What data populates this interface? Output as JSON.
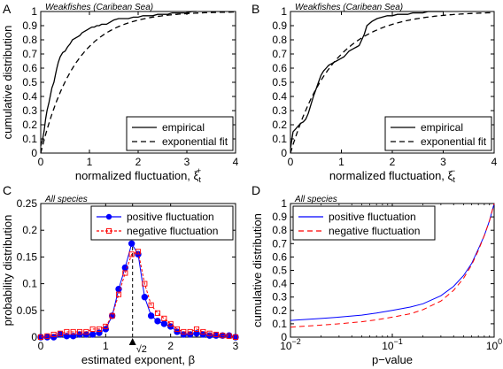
{
  "figure": {
    "panel_letters": [
      "A",
      "B",
      "C",
      "D"
    ]
  },
  "chart_data": [
    {
      "panel": "A",
      "type": "line",
      "title": "Weakfishes (Caribean Sea)",
      "xlabel": "normalized fluctuation, ξ",
      "xlabel_sub": "t",
      "xlabel_sup": "+",
      "ylabel": "cumulative distribution",
      "xlim": [
        0,
        4
      ],
      "ylim": [
        0,
        1
      ],
      "xscale": "linear",
      "xticks": [
        0,
        1,
        2,
        3,
        4
      ],
      "xticklabels": [
        "0",
        "1",
        "2",
        "3",
        "4"
      ],
      "yticks": [
        0,
        0.1,
        0.2,
        0.3,
        0.4,
        0.5,
        0.6,
        0.7,
        0.8,
        0.9,
        1
      ],
      "yticklabels": [
        "0",
        "0.1",
        "0.2",
        "0.3",
        "0.4",
        "0.5",
        "0.6",
        "0.7",
        "0.8",
        "0.9",
        "1"
      ],
      "legend_position": "bottom-right",
      "series": [
        {
          "name": "empirical",
          "style": "solid",
          "color": "#000000",
          "x": [
            0,
            0.04,
            0.07,
            0.1,
            0.13,
            0.17,
            0.2,
            0.23,
            0.27,
            0.3,
            0.33,
            0.36,
            0.4,
            0.45,
            0.5,
            0.55,
            0.6,
            0.65,
            0.7,
            0.75,
            0.8,
            0.85,
            0.9,
            0.95,
            1.0,
            1.05,
            1.1,
            1.15,
            1.2,
            1.25,
            1.3,
            1.35,
            1.4,
            1.45,
            1.5,
            1.6,
            1.7,
            1.8,
            1.9,
            2.0,
            2.1,
            2.2,
            2.3,
            2.4,
            2.5,
            2.6,
            2.7,
            2.8,
            2.9,
            3.0,
            3.1,
            3.2
          ],
          "y": [
            0.05,
            0.1,
            0.16,
            0.24,
            0.3,
            0.36,
            0.41,
            0.46,
            0.5,
            0.55,
            0.6,
            0.64,
            0.68,
            0.71,
            0.72,
            0.75,
            0.77,
            0.8,
            0.81,
            0.82,
            0.83,
            0.85,
            0.86,
            0.87,
            0.88,
            0.89,
            0.89,
            0.9,
            0.9,
            0.91,
            0.91,
            0.91,
            0.92,
            0.93,
            0.94,
            0.95,
            0.95,
            0.95,
            0.96,
            0.96,
            0.97,
            0.97,
            0.97,
            0.98,
            0.98,
            0.98,
            0.99,
            0.99,
            0.99,
            0.99,
            1.0,
            1.0
          ]
        },
        {
          "name": "exponential fit",
          "style": "dashed",
          "color": "#000000",
          "fn": "exp",
          "rate": 1.4
        }
      ]
    },
    {
      "panel": "B",
      "type": "line",
      "title": "Weakfishes (Caribean Sea)",
      "xlabel": "normalized fluctuation, ξ",
      "xlabel_sub": "t",
      "xlabel_sup": "−",
      "ylabel": "",
      "xlim": [
        0,
        4
      ],
      "ylim": [
        0,
        1
      ],
      "xscale": "linear",
      "xticks": [
        0,
        1,
        2,
        3,
        4
      ],
      "xticklabels": [
        "0",
        "1",
        "2",
        "3",
        "4"
      ],
      "yticks": [
        0,
        0.1,
        0.2,
        0.3,
        0.4,
        0.5,
        0.6,
        0.7,
        0.8,
        0.9,
        1
      ],
      "yticklabels": [
        "0",
        "0.1",
        "0.2",
        "0.3",
        "0.4",
        "0.5",
        "0.6",
        "0.7",
        "0.8",
        "0.9",
        "1"
      ],
      "legend_position": "bottom-right",
      "series": [
        {
          "name": "empirical",
          "style": "solid",
          "color": "#000000",
          "x": [
            0,
            0.05,
            0.1,
            0.15,
            0.2,
            0.25,
            0.3,
            0.35,
            0.4,
            0.45,
            0.5,
            0.55,
            0.6,
            0.65,
            0.7,
            0.75,
            0.8,
            0.85,
            0.9,
            0.95,
            1.0,
            1.05,
            1.1,
            1.15,
            1.2,
            1.25,
            1.3,
            1.35,
            1.4,
            1.45,
            1.5,
            1.6,
            1.7,
            1.8,
            1.9,
            2.0,
            2.1,
            2.2,
            2.3,
            2.4,
            2.5,
            2.6,
            2.7,
            2.8,
            2.9,
            3.0
          ],
          "y": [
            0.03,
            0.15,
            0.17,
            0.19,
            0.21,
            0.22,
            0.24,
            0.28,
            0.34,
            0.4,
            0.45,
            0.5,
            0.55,
            0.58,
            0.6,
            0.62,
            0.63,
            0.64,
            0.65,
            0.66,
            0.67,
            0.68,
            0.7,
            0.72,
            0.73,
            0.74,
            0.75,
            0.76,
            0.8,
            0.84,
            0.9,
            0.93,
            0.95,
            0.96,
            0.97,
            0.97,
            0.98,
            0.98,
            0.98,
            0.99,
            0.99,
            0.99,
            1.0,
            1.0,
            1.0,
            1.0
          ]
        },
        {
          "name": "exponential fit",
          "style": "dashed",
          "color": "#000000",
          "fn": "exp",
          "rate": 1.2
        }
      ]
    },
    {
      "panel": "C",
      "type": "line",
      "title": "All species",
      "xlabel": "estimated exponent, β",
      "ylabel": "probability distribution",
      "xlim": [
        0,
        3
      ],
      "ylim": [
        0,
        0.25
      ],
      "xscale": "linear",
      "xticks": [
        0,
        1,
        2,
        3
      ],
      "xticklabels": [
        "0",
        "1",
        "2",
        "3"
      ],
      "yticks": [
        0,
        0.05,
        0.1,
        0.15,
        0.2,
        0.25
      ],
      "yticklabels": [
        "0",
        "0.05",
        "0.1",
        "0.15",
        "0.2",
        "0.25"
      ],
      "legend_position": "top-right",
      "annotation": {
        "text": "√2",
        "x": 1.414
      },
      "series": [
        {
          "name": "positive fluctuation",
          "style": "solid",
          "marker": "circle",
          "color": "#0000ff",
          "x": [
            0.0,
            0.1,
            0.2,
            0.3,
            0.4,
            0.5,
            0.6,
            0.7,
            0.8,
            0.9,
            1.0,
            1.1,
            1.2,
            1.3,
            1.4,
            1.5,
            1.6,
            1.7,
            1.8,
            1.9,
            2.0,
            2.1,
            2.2,
            2.3,
            2.4,
            2.5,
            2.6,
            2.7,
            2.8,
            2.9,
            3.0
          ],
          "y": [
            0.0,
            0.0,
            0.0,
            0.005,
            0.002,
            0.002,
            0.005,
            0.005,
            0.005,
            0.008,
            0.015,
            0.04,
            0.09,
            0.13,
            0.175,
            0.155,
            0.075,
            0.04,
            0.03,
            0.025,
            0.02,
            0.01,
            0.005,
            0.005,
            0.007,
            0.005,
            0.003,
            0.003,
            0.003,
            0.003,
            0.0
          ]
        },
        {
          "name": "negative fluctuation",
          "style": "dashed",
          "marker": "square",
          "color": "#ff0000",
          "x": [
            0.0,
            0.1,
            0.2,
            0.3,
            0.4,
            0.5,
            0.6,
            0.7,
            0.8,
            0.9,
            1.0,
            1.1,
            1.2,
            1.3,
            1.4,
            1.5,
            1.6,
            1.7,
            1.8,
            1.9,
            2.0,
            2.1,
            2.2,
            2.3,
            2.4,
            2.5,
            2.6,
            2.7,
            2.8,
            2.9,
            3.0
          ],
          "y": [
            0.0,
            0.002,
            0.005,
            0.007,
            0.01,
            0.01,
            0.01,
            0.01,
            0.015,
            0.015,
            0.02,
            0.04,
            0.08,
            0.12,
            0.155,
            0.16,
            0.1,
            0.06,
            0.045,
            0.035,
            0.025,
            0.015,
            0.01,
            0.01,
            0.015,
            0.01,
            0.007,
            0.005,
            0.003,
            0.002,
            0.0
          ]
        }
      ]
    },
    {
      "panel": "D",
      "type": "line",
      "title": "All species",
      "xlabel": "p−value",
      "ylabel": "cumulative distribution",
      "xlim": [
        0.01,
        1
      ],
      "ylim": [
        0,
        1
      ],
      "xscale": "log",
      "xticks": [
        0.01,
        0.1,
        1
      ],
      "xticklabels": [
        "10",
        "10",
        "10"
      ],
      "xtick_exponents": [
        "−2",
        "−1",
        "0"
      ],
      "yticks": [
        0,
        0.1,
        0.2,
        0.3,
        0.4,
        0.5,
        0.6,
        0.7,
        0.8,
        0.9,
        1
      ],
      "yticklabels": [
        "0",
        "0.1",
        "0.2",
        "0.3",
        "0.4",
        "0.5",
        "0.6",
        "0.7",
        "0.8",
        "0.9",
        "1"
      ],
      "legend_position": "top-left",
      "series": [
        {
          "name": "positive fluctuation",
          "style": "solid",
          "color": "#0000ff",
          "x": [
            0.01,
            0.02,
            0.03,
            0.05,
            0.07,
            0.1,
            0.15,
            0.2,
            0.3,
            0.4,
            0.5,
            0.6,
            0.7,
            0.8,
            0.9,
            1.0
          ],
          "y": [
            0.125,
            0.14,
            0.15,
            0.165,
            0.18,
            0.2,
            0.225,
            0.25,
            0.31,
            0.38,
            0.46,
            0.55,
            0.66,
            0.76,
            0.87,
            1.0
          ]
        },
        {
          "name": "negative fluctuation",
          "style": "dashed",
          "color": "#ff0000",
          "x": [
            0.01,
            0.02,
            0.03,
            0.05,
            0.07,
            0.1,
            0.15,
            0.2,
            0.3,
            0.4,
            0.5,
            0.6,
            0.7,
            0.8,
            0.9,
            1.0
          ],
          "y": [
            0.075,
            0.09,
            0.1,
            0.115,
            0.13,
            0.15,
            0.175,
            0.205,
            0.27,
            0.35,
            0.44,
            0.54,
            0.65,
            0.76,
            0.87,
            1.0
          ]
        }
      ]
    }
  ]
}
